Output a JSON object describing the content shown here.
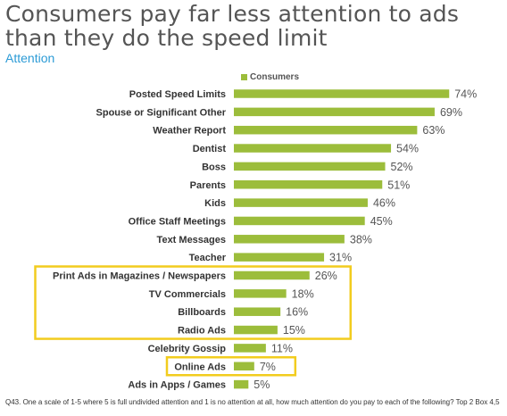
{
  "title": "Consumers pay far less attention to ads than they do the speed limit",
  "subtitle": "Attention",
  "footnote": "Q43. One a scale of 1-5 where 5 is full undivided attention and 1 is no attention at all, how much attention do you pay to each of the following? Top 2 Box 4,5",
  "colors": {
    "bar": "#9cbd3b",
    "highlight": "#f2cc1e",
    "title": "#555555",
    "subtitle": "#2c9bd6"
  },
  "chart_data": {
    "type": "bar",
    "orientation": "horizontal",
    "grid": false,
    "legend": "top",
    "xlim": [
      0,
      100
    ],
    "series": [
      {
        "name": "Consumers",
        "values": [
          74,
          69,
          63,
          54,
          52,
          51,
          46,
          45,
          38,
          31,
          26,
          18,
          16,
          15,
          11,
          7,
          5
        ]
      }
    ],
    "categories": [
      "Posted Speed Limits",
      "Spouse or Significant Other",
      "Weather Report",
      "Dentist",
      "Boss",
      "Parents",
      "Kids",
      "Office Staff Meetings",
      "Text Messages",
      "Teacher",
      "Print Ads in Magazines / Newspapers",
      "TV Commercials",
      "Billboards",
      "Radio Ads",
      "Celebrity Gossip",
      "Online Ads",
      "Ads in Apps / Games"
    ],
    "value_labels": [
      "74%",
      "69%",
      "63%",
      "54%",
      "52%",
      "51%",
      "46%",
      "45%",
      "38%",
      "31%",
      "26%",
      "18%",
      "16%",
      "15%",
      "11%",
      "7%",
      "5%"
    ],
    "highlight_groups": [
      [
        "Print Ads in Magazines / Newspapers",
        "TV Commercials",
        "Billboards",
        "Radio Ads"
      ],
      [
        "Online Ads"
      ]
    ]
  }
}
